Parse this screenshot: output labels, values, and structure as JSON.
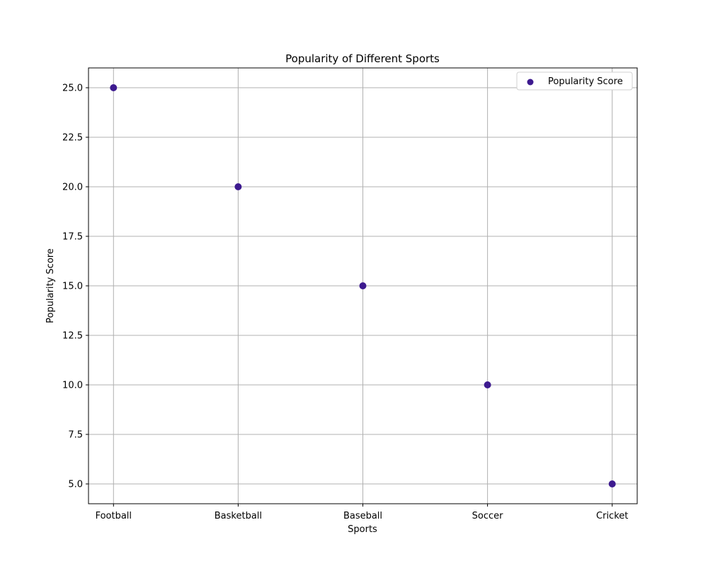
{
  "chart_data": {
    "type": "scatter",
    "title": "Popularity of Different Sports",
    "xlabel": "Sports",
    "ylabel": "Popularity Score",
    "categories": [
      "Football",
      "Basketball",
      "Baseball",
      "Soccer",
      "Cricket"
    ],
    "series": [
      {
        "name": "Popularity Score",
        "values": [
          25,
          20,
          15,
          10,
          5
        ],
        "color": "#3d1a8f"
      }
    ],
    "ylim": [
      4,
      26
    ],
    "yticks": [
      5.0,
      7.5,
      10.0,
      12.5,
      15.0,
      17.5,
      20.0,
      22.5,
      25.0
    ],
    "ytick_labels": [
      "5.0",
      "7.5",
      "10.0",
      "12.5",
      "15.0",
      "17.5",
      "20.0",
      "22.5",
      "25.0"
    ],
    "grid": true,
    "legend": "top-right",
    "grid_color": "#b0b0b0"
  }
}
